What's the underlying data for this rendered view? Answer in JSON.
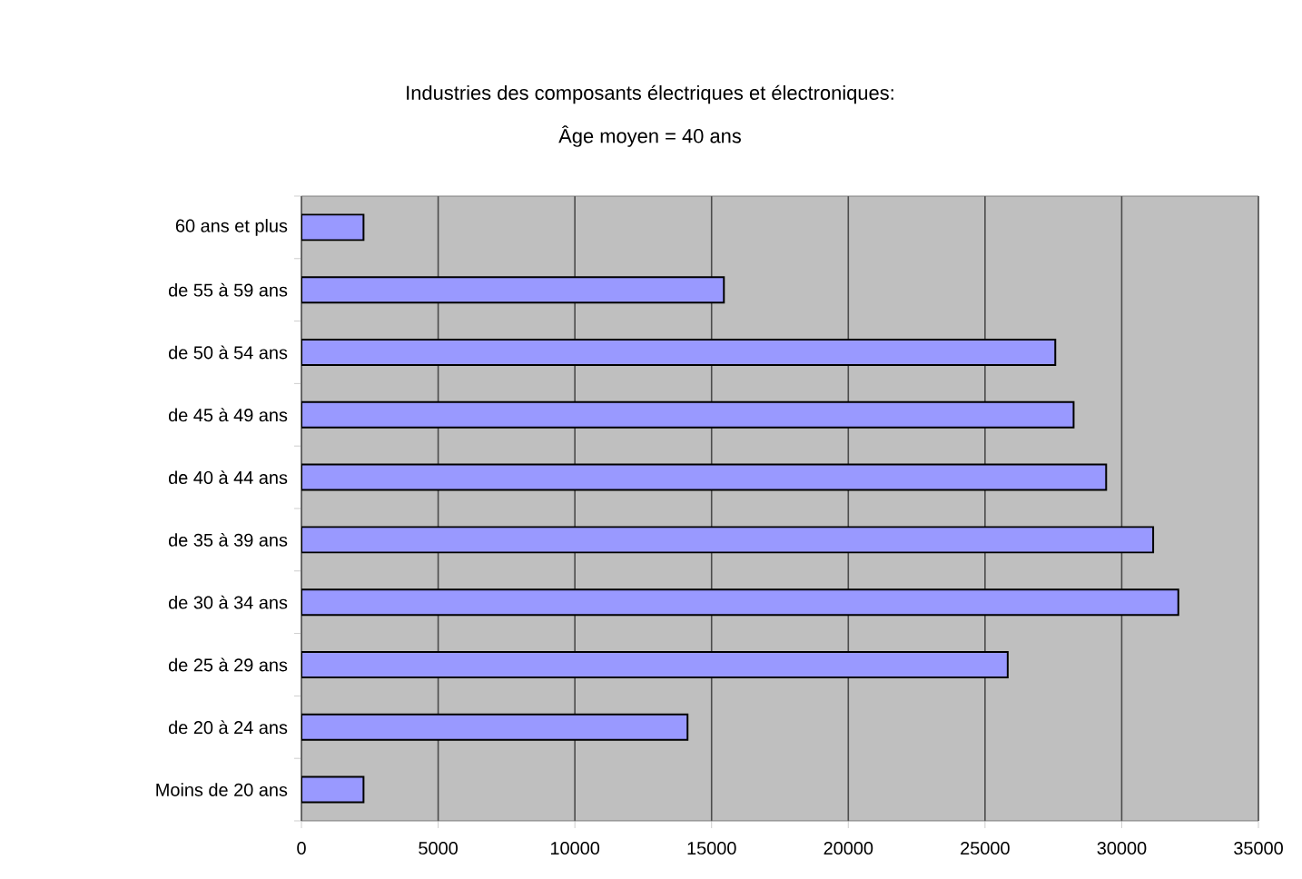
{
  "chart_data": {
    "type": "bar",
    "orientation": "horizontal",
    "title": "Industries des composants électriques et électroniques:",
    "subtitle": "Âge moyen = 40 ans",
    "categories": [
      "60 ans et plus",
      "de 55 à 59 ans",
      "de 50 à 54 ans",
      "de 45 à 49 ans",
      "de 40 à 44 ans",
      "de 35 à 39 ans",
      "de 30 à 34 ans",
      "de 25 à 29 ans",
      "de 20 à 24 ans",
      "Moins de 20 ans"
    ],
    "values": [
      2270,
      15450,
      27570,
      28240,
      29430,
      31150,
      32070,
      25830,
      14120,
      2270
    ],
    "color": "#9999ff",
    "xlim": [
      0,
      35000
    ],
    "xticks": [
      0,
      5000,
      10000,
      15000,
      20000,
      25000,
      30000,
      35000
    ],
    "grid": "x"
  }
}
